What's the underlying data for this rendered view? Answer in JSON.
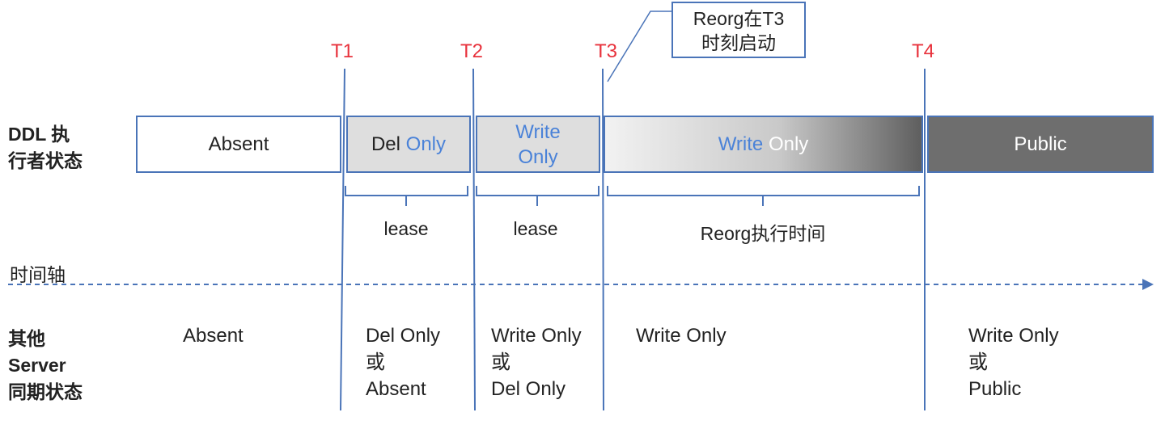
{
  "time_markers": [
    "T1",
    "T2",
    "T3",
    "T4"
  ],
  "callout": {
    "line1": "Reorg在T3",
    "line2": "时刻启动"
  },
  "ddl_row": {
    "label_line1": "DDL 执",
    "label_line2": "行者状态",
    "boxes": {
      "absent": "Absent",
      "del_only": {
        "word1": "Del",
        "word2": "Only"
      },
      "write_only_1": {
        "line1": "Write",
        "line2": "Only"
      },
      "write_only_2": {
        "word1": "Write",
        "word2": "Only"
      },
      "public": "Public"
    }
  },
  "durations": [
    "lease",
    "lease",
    "Reorg执行时间"
  ],
  "axis_label": "时间轴",
  "server_row": {
    "label_line1": "其他",
    "label_line2": "Server",
    "label_line3": "同期状态",
    "states": {
      "s1": "Absent",
      "s2": {
        "line1": "Del Only",
        "line2": "或",
        "line3": "Absent"
      },
      "s3": {
        "line1": "Write Only",
        "line2": "或",
        "line3": "Del Only"
      },
      "s4": "Write Only",
      "s5": {
        "line1": "Write Only",
        "line2": "或",
        "line3": "Public"
      }
    }
  },
  "colors": {
    "line_blue": "#4a74b8",
    "marker_red": "#e8323c",
    "box_light": "#dedede",
    "box_dark": "#6e6e6e",
    "text_blue": "#4a82d8"
  }
}
